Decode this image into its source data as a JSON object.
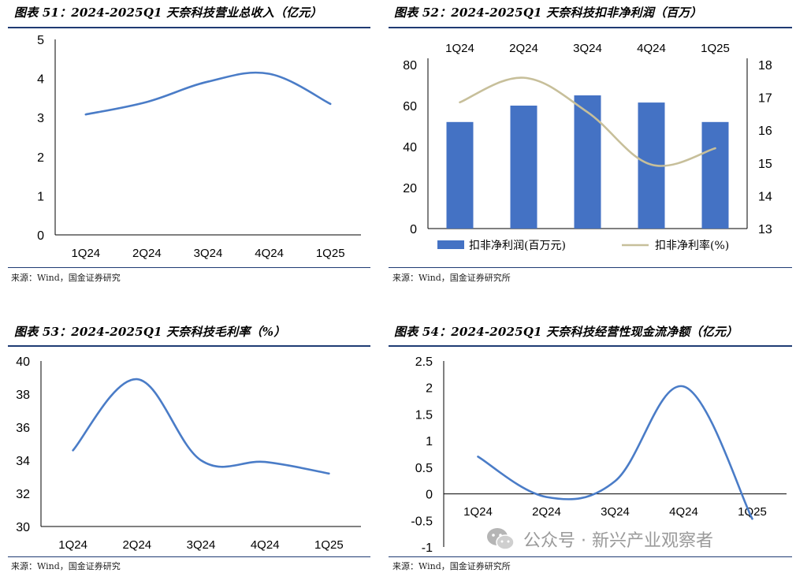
{
  "panels": [
    {
      "title": "图表 51：2024-2025Q1 天奈科技营业总收入（亿元）",
      "source": "来源：Wind，国金证券研究"
    },
    {
      "title": "图表 52：2024-2025Q1 天奈科技扣非净利润（百万）",
      "source": "来源：Wind，国金证券研究所"
    },
    {
      "title": "图表 53：2024-2025Q1 天奈科技毛利率（%）",
      "source": "来源：Wind，国金证券研究"
    },
    {
      "title": "图表 54：2024-2025Q1 天奈科技经营性现金流净额（亿元）",
      "source": "来源：Wind，国金证券研究所"
    }
  ],
  "watermark": {
    "text": "公众号 · 新兴产业观察者",
    "icon": "wechat-icon"
  },
  "colors": {
    "line": "#4a7cc7",
    "bar": "#4472c4",
    "rate_line": "#c7bf9a",
    "rule": "#1f3b73",
    "axis": "#000000"
  },
  "chart_data": [
    {
      "type": "line",
      "title": "2024-2025Q1 天奈科技营业总收入（亿元）",
      "categories": [
        "1Q24",
        "2Q24",
        "3Q24",
        "4Q24",
        "1Q25"
      ],
      "series": [
        {
          "values": [
            3.08,
            3.4,
            3.92,
            4.12,
            3.35
          ]
        }
      ],
      "ylim": [
        0,
        5
      ],
      "yticks": [
        "0",
        "1",
        "2",
        "3",
        "4",
        "5"
      ],
      "smooth": true
    },
    {
      "type": "bar",
      "title": "2024-2025Q1 天奈科技扣非净利润（百万）",
      "categories": [
        "1Q24",
        "2Q24",
        "3Q24",
        "4Q24",
        "1Q25"
      ],
      "series": [
        {
          "name": "扣非净利润(百万元)",
          "type": "bar",
          "values": [
            52,
            60,
            65,
            61.5,
            52
          ],
          "axis": "left"
        },
        {
          "name": "扣非净利率(%)",
          "type": "line",
          "values": [
            16.85,
            17.6,
            16.55,
            14.95,
            15.45
          ],
          "axis": "right"
        }
      ],
      "ylim": [
        0,
        80
      ],
      "yticks": [
        "0",
        "20",
        "40",
        "60",
        "80"
      ],
      "y2lim": [
        13,
        18
      ],
      "y2ticks": [
        "13",
        "14",
        "15",
        "16",
        "17",
        "18"
      ],
      "legend": "bottom",
      "xaxis_position": "top",
      "smooth": true
    },
    {
      "type": "line",
      "title": "2024-2025Q1 天奈科技毛利率（%）",
      "categories": [
        "1Q24",
        "2Q24",
        "3Q24",
        "4Q24",
        "1Q25"
      ],
      "series": [
        {
          "values": [
            34.6,
            38.9,
            34.0,
            33.9,
            33.2
          ]
        }
      ],
      "ylim": [
        30,
        40
      ],
      "yticks": [
        "30",
        "32",
        "34",
        "36",
        "38",
        "40"
      ],
      "smooth": true
    },
    {
      "type": "line",
      "title": "2024-2025Q1 天奈科技经营性现金流净额（亿元）",
      "categories": [
        "1Q24",
        "2Q24",
        "3Q24",
        "4Q24",
        "1Q25"
      ],
      "series": [
        {
          "values": [
            0.7,
            -0.06,
            0.24,
            2.02,
            -0.47
          ]
        }
      ],
      "ylim": [
        -1,
        2.5
      ],
      "yticks": [
        "-1",
        "-0.5",
        "0",
        "0.5",
        "1",
        "1.5",
        "2",
        "2.5"
      ],
      "smooth": true
    }
  ]
}
